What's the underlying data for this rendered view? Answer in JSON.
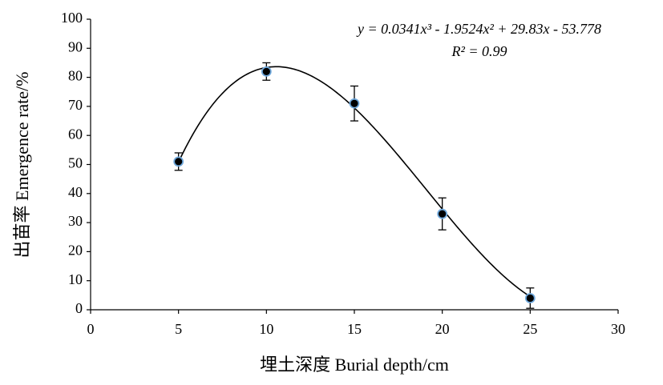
{
  "chart_data": {
    "type": "scatter",
    "xlabel": "埋土深度 Burial depth/cm",
    "ylabel": "出苗率 Emergence rate/%",
    "x": [
      5,
      10,
      15,
      20,
      25
    ],
    "series": [
      {
        "color": "#000000",
        "values": [
          51,
          82,
          71,
          33,
          4
        ],
        "errors": [
          3,
          3,
          6,
          5.5,
          3.5
        ]
      }
    ],
    "fit": {
      "equation": "y = 0.0341x³ - 1.9524x² + 29.83x - 53.778",
      "r_squared": "R² = 0.99",
      "coefficients": [
        0.0341,
        -1.9524,
        29.83,
        -53.778
      ]
    },
    "xlim": [
      0,
      30
    ],
    "xticks": [
      0,
      5,
      10,
      15,
      20,
      25,
      30
    ],
    "ylim": [
      0,
      100
    ],
    "yticks": [
      0,
      10,
      20,
      30,
      40,
      50,
      60,
      70,
      80,
      90,
      100
    ],
    "grid": false
  }
}
